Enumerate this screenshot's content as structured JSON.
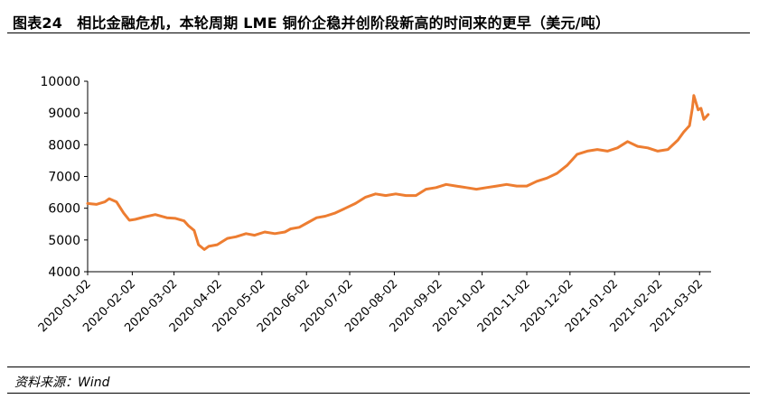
{
  "figure": {
    "title": "图表24　相比金融危机，本轮周期 LME 铜价企稳并创阶段新高的时间来的更早（美元/吨）",
    "source": "资料来源：Wind"
  },
  "chart_data": {
    "type": "line",
    "title": "相比金融危机，本轮周期 LME 铜价企稳并创阶段新高的时间来的更早（美元/吨）",
    "xlabel": "",
    "ylabel": "",
    "ylim": [
      4000,
      10000
    ],
    "yticks": [
      4000,
      5000,
      6000,
      7000,
      8000,
      9000,
      10000
    ],
    "xticks": [
      "2020-01-02",
      "2020-02-02",
      "2020-03-02",
      "2020-04-02",
      "2020-05-02",
      "2020-06-02",
      "2020-07-02",
      "2020-08-02",
      "2020-09-02",
      "2020-10-02",
      "2020-11-02",
      "2020-12-02",
      "2021-01-02",
      "2021-02-02",
      "2021-03-02"
    ],
    "xlim": [
      "2020-01-02",
      "2021-03-10"
    ],
    "grid": false,
    "legend": "none",
    "line_color": "#ed7d31",
    "series": [
      {
        "x": [
          "2020-01-02",
          "2020-01-08",
          "2020-01-14",
          "2020-01-17",
          "2020-01-22",
          "2020-01-27",
          "2020-01-31",
          "2020-02-04",
          "2020-02-10",
          "2020-02-18",
          "2020-02-26",
          "2020-03-03",
          "2020-03-09",
          "2020-03-12",
          "2020-03-16",
          "2020-03-19",
          "2020-03-23",
          "2020-03-26",
          "2020-04-01",
          "2020-04-08",
          "2020-04-14",
          "2020-04-21",
          "2020-04-27",
          "2020-05-04",
          "2020-05-11",
          "2020-05-18",
          "2020-05-22",
          "2020-05-28",
          "2020-06-03",
          "2020-06-09",
          "2020-06-15",
          "2020-06-22",
          "2020-06-29",
          "2020-07-06",
          "2020-07-13",
          "2020-07-20",
          "2020-07-27",
          "2020-08-03",
          "2020-08-10",
          "2020-08-17",
          "2020-08-24",
          "2020-08-31",
          "2020-09-07",
          "2020-09-14",
          "2020-09-21",
          "2020-09-28",
          "2020-10-05",
          "2020-10-12",
          "2020-10-19",
          "2020-10-26",
          "2020-11-02",
          "2020-11-09",
          "2020-11-16",
          "2020-11-23",
          "2020-11-30",
          "2020-12-07",
          "2020-12-14",
          "2020-12-21",
          "2020-12-28",
          "2021-01-04",
          "2021-01-11",
          "2021-01-18",
          "2021-01-25",
          "2021-02-01",
          "2021-02-08",
          "2021-02-15",
          "2021-02-19",
          "2021-02-23",
          "2021-02-25",
          "2021-02-26",
          "2021-03-01",
          "2021-03-03",
          "2021-03-05",
          "2021-03-08"
        ],
        "y": [
          6150,
          6120,
          6200,
          6300,
          6200,
          5850,
          5620,
          5650,
          5720,
          5800,
          5700,
          5680,
          5600,
          5450,
          5300,
          4850,
          4700,
          4800,
          4850,
          5050,
          5100,
          5200,
          5150,
          5250,
          5200,
          5250,
          5350,
          5400,
          5550,
          5700,
          5750,
          5850,
          6000,
          6150,
          6350,
          6450,
          6400,
          6450,
          6400,
          6400,
          6600,
          6650,
          6750,
          6700,
          6650,
          6600,
          6650,
          6700,
          6750,
          6700,
          6700,
          6850,
          6950,
          7100,
          7350,
          7700,
          7800,
          7850,
          7800,
          7900,
          8100,
          7950,
          7900,
          7800,
          7850,
          8150,
          8400,
          8600,
          9150,
          9550,
          9100,
          9150,
          8800,
          8950
        ]
      }
    ]
  }
}
